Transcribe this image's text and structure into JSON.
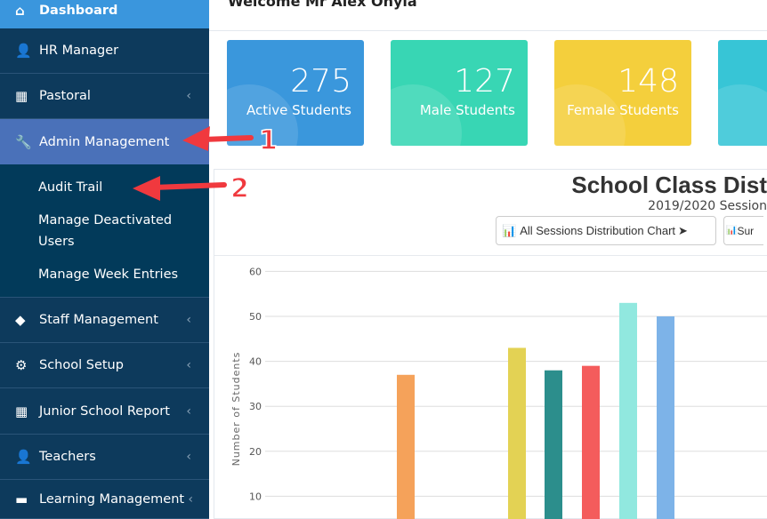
{
  "sidebar": {
    "items": [
      {
        "label": "Dashboard",
        "icon": "home-icon"
      },
      {
        "label": "HR Manager",
        "icon": "users-icon"
      },
      {
        "label": "Pastoral",
        "icon": "table-icon"
      },
      {
        "label": "Admin Management",
        "icon": "wrench-icon"
      },
      {
        "label": "Staff Management",
        "icon": "diamond-icon"
      },
      {
        "label": "School Setup",
        "icon": "gear-icon"
      },
      {
        "label": "Junior School Report",
        "icon": "table-icon"
      },
      {
        "label": "Teachers",
        "icon": "users-icon"
      },
      {
        "label": "Learning Management",
        "icon": "briefcase-icon"
      }
    ],
    "subitems": [
      "Audit Trail",
      "Manage Deactivated Users",
      "Manage Week Entries"
    ]
  },
  "header": {
    "welcome": "Welcome Mr Alex Onyla"
  },
  "cards": [
    {
      "value": "275",
      "label": "Active Students",
      "color": "#3a97dc"
    },
    {
      "value": "127",
      "label": "Male Students",
      "color": "#38d6b4"
    },
    {
      "value": "148",
      "label": "Female Students",
      "color": "#f4cf3c"
    },
    {
      "value": "",
      "label": "",
      "color": "#37c5d6"
    }
  ],
  "annotations": [
    "1",
    "2"
  ],
  "chart_panel": {
    "title": "School Class Dist",
    "subtitle": "2019/2020 Session",
    "buttons": [
      "All Sessions Distribution Chart",
      "Sur"
    ]
  },
  "chart_data": {
    "type": "bar",
    "ylabel": "Number of Students",
    "ylim": [
      0,
      60
    ],
    "yticks": [
      10,
      20,
      30,
      40,
      50,
      60
    ],
    "values": [
      37,
      43,
      38,
      39,
      53,
      50
    ],
    "colors": [
      "#f5a25a",
      "#e3d254",
      "#2c8e8c",
      "#f45c5c",
      "#91e8df",
      "#7db3e8"
    ]
  }
}
